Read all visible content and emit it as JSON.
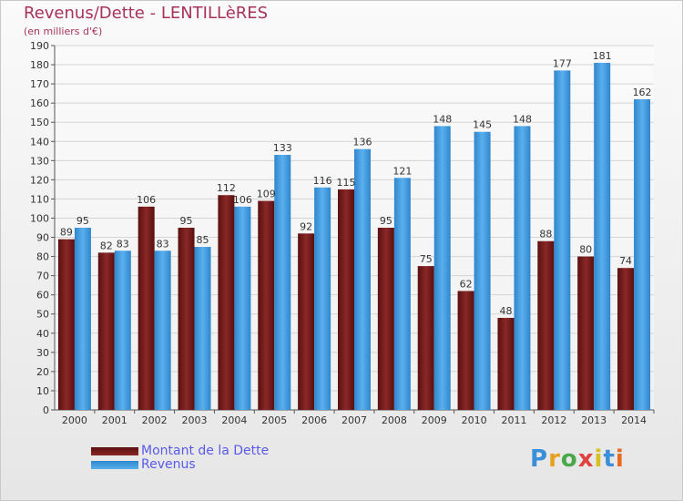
{
  "title": "Revenus/Dette - LENTILLèRES",
  "subtitle": "(en milliers d'€)",
  "colors": {
    "title": "#a8325a",
    "dette": "#7a1c1c",
    "revenus": "#4da6e8",
    "legend_text": "#5a5ae8"
  },
  "chart_data": {
    "type": "bar",
    "title": "Revenus/Dette - LENTILLèRES",
    "ylabel": "(en milliers d'€)",
    "xlabel": "",
    "categories": [
      "2000",
      "2001",
      "2002",
      "2003",
      "2004",
      "2005",
      "2006",
      "2007",
      "2008",
      "2009",
      "2010",
      "2011",
      "2012",
      "2013",
      "2014"
    ],
    "series": [
      {
        "name": "Montant de la Dette",
        "values": [
          89,
          82,
          106,
          95,
          112,
          109,
          92,
          115,
          95,
          75,
          62,
          48,
          88,
          80,
          74
        ]
      },
      {
        "name": "Revenus",
        "values": [
          95,
          83,
          83,
          85,
          106,
          133,
          116,
          136,
          121,
          148,
          145,
          148,
          177,
          181,
          162
        ]
      }
    ],
    "ylim": [
      0,
      190
    ],
    "yticks": [
      0,
      10,
      20,
      30,
      40,
      50,
      60,
      70,
      80,
      90,
      100,
      110,
      120,
      130,
      140,
      150,
      160,
      170,
      180,
      190
    ],
    "grid": true,
    "legend_position": "bottom-left"
  },
  "legend": {
    "dette_label": "Montant de la Dette",
    "revenus_label": "Revenus"
  },
  "logo": {
    "letters": [
      "P",
      "r",
      "o",
      "x",
      "i",
      "t",
      "i"
    ],
    "colors": [
      "#3a8fd8",
      "#e8a020",
      "#4aa84a",
      "#e04040",
      "#d8c020",
      "#3a8fd8",
      "#e86a20"
    ]
  }
}
